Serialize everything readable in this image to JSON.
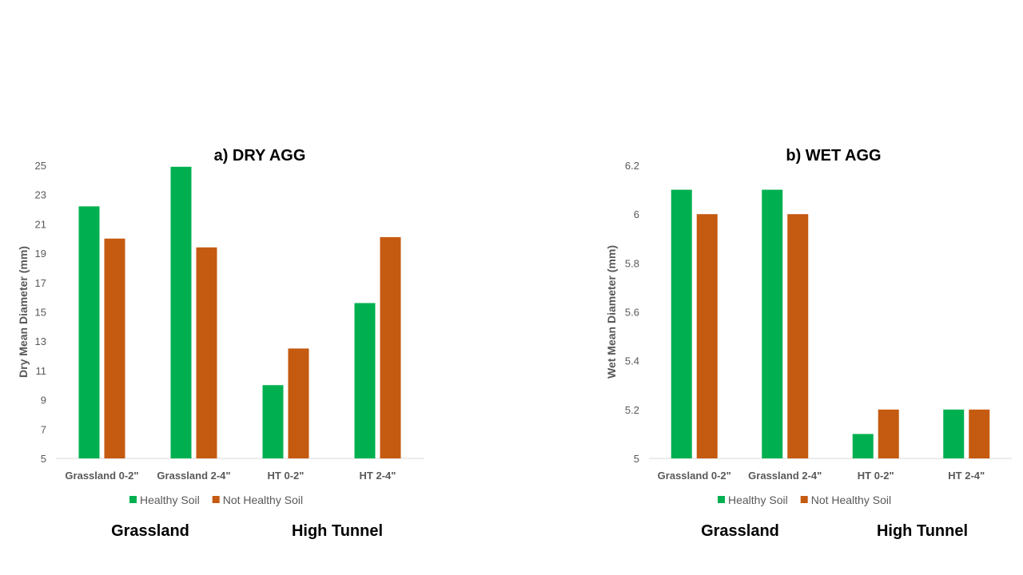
{
  "colors": {
    "healthy": "#00b050",
    "not_healthy": "#c55a11",
    "axis": "#d9d9d9"
  },
  "chart_data": [
    {
      "type": "bar",
      "title": "a) DRY AGG",
      "xlabel": "",
      "ylabel": "Dry Mean Diameter (mm)",
      "categories": [
        "Grassland 0-2\"",
        "Grassland 2-4\"",
        "HT 0-2\"",
        "HT 2-4\""
      ],
      "series": [
        {
          "name": "Healthy Soil",
          "values": [
            22.2,
            24.9,
            10.0,
            15.6
          ]
        },
        {
          "name": "Not Healthy Soil",
          "values": [
            20.0,
            19.4,
            12.5,
            20.1
          ]
        }
      ],
      "ylim": [
        5,
        25
      ],
      "yticks": [
        "5",
        "7",
        "9",
        "11",
        "13",
        "15",
        "17",
        "19",
        "21",
        "23",
        "25"
      ],
      "legend_position": "bottom",
      "gridlines": false,
      "group_labels": [
        "Grassland",
        "High Tunnel"
      ]
    },
    {
      "type": "bar",
      "title": "b) WET AGG",
      "xlabel": "",
      "ylabel": "Wet Mean Diameter (mm)",
      "categories": [
        "Grassland 0-2\"",
        "Grassland 2-4\"",
        "HT 0-2\"",
        "HT 2-4\""
      ],
      "series": [
        {
          "name": "Healthy Soil",
          "values": [
            6.1,
            6.1,
            5.1,
            5.2
          ]
        },
        {
          "name": "Not Healthy Soil",
          "values": [
            6.0,
            6.0,
            5.2,
            5.2
          ]
        }
      ],
      "ylim": [
        5,
        6.2
      ],
      "yticks": [
        "5",
        "5.2",
        "5.4",
        "5.6",
        "5.8",
        "6",
        "6.2"
      ],
      "legend_position": "bottom",
      "gridlines": false,
      "group_labels": [
        "Grassland",
        "High Tunnel"
      ]
    }
  ]
}
